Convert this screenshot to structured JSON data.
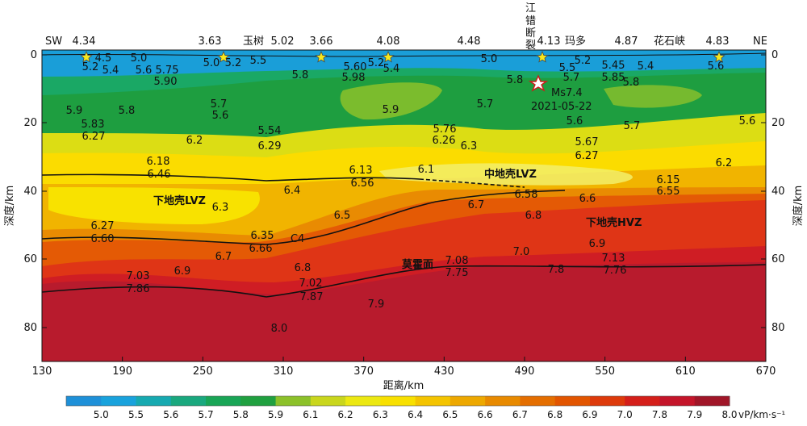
{
  "profile": {
    "sw_label": "SW",
    "ne_label": "NE",
    "left_depth_title": "深度/km",
    "right_depth_title": "深度/km",
    "x_axis_title": "距离/km",
    "x_ticks": [
      "130",
      "190",
      "250",
      "310",
      "370",
      "430",
      "490",
      "550",
      "610",
      "670"
    ],
    "y_ticks": [
      "0",
      "20",
      "40",
      "60",
      "80"
    ],
    "top_values": [
      "4.34",
      "3.63",
      "5.02",
      "3.66",
      "4.08",
      "4.48",
      "4.13",
      "4.87",
      "4.83"
    ],
    "places": [
      "玉树",
      "江错断裂",
      "玛多",
      "花石峡"
    ],
    "quake_magnitude": "Ms7.4",
    "quake_date": "2021-05-22",
    "zones": {
      "mid_crust_lvz": "中地壳LVZ",
      "lower_crust_lvz": "下地壳LVZ",
      "lower_crust_hvz": "下地壳HVZ",
      "moho": "莫霍面",
      "c4": "C4"
    },
    "velocity_labels": [
      {
        "t": "4.5",
        "x": 128,
        "y": 76
      },
      {
        "t": "5.0",
        "x": 172,
        "y": 76
      },
      {
        "t": "5.2",
        "x": 112,
        "y": 87
      },
      {
        "t": "5.4",
        "x": 137,
        "y": 91
      },
      {
        "t": "5.6",
        "x": 178,
        "y": 91
      },
      {
        "t": "5.75",
        "x": 207,
        "y": 91
      },
      {
        "t": "5.90",
        "x": 205,
        "y": 105
      },
      {
        "t": "5.0",
        "x": 262,
        "y": 82
      },
      {
        "t": "5.2",
        "x": 289,
        "y": 82
      },
      {
        "t": "5.5",
        "x": 320,
        "y": 79
      },
      {
        "t": "5.60",
        "x": 440,
        "y": 87
      },
      {
        "t": "5.2",
        "x": 466,
        "y": 82
      },
      {
        "t": "5.4",
        "x": 485,
        "y": 89
      },
      {
        "t": "5.98",
        "x": 438,
        "y": 100
      },
      {
        "t": "5.8",
        "x": 372,
        "y": 97
      },
      {
        "t": "5.0",
        "x": 606,
        "y": 77
      },
      {
        "t": "5.2",
        "x": 722,
        "y": 79
      },
      {
        "t": "5.5",
        "x": 703,
        "y": 88
      },
      {
        "t": "5.45",
        "x": 760,
        "y": 85
      },
      {
        "t": "5.4",
        "x": 800,
        "y": 86
      },
      {
        "t": "5.6",
        "x": 887,
        "y": 86
      },
      {
        "t": "5.7",
        "x": 708,
        "y": 100
      },
      {
        "t": "5.85",
        "x": 760,
        "y": 100
      },
      {
        "t": "5.8",
        "x": 782,
        "y": 106
      },
      {
        "t": "5.8",
        "x": 638,
        "y": 103
      },
      {
        "t": "5.9",
        "x": 92,
        "y": 141
      },
      {
        "t": "5.8",
        "x": 157,
        "y": 141
      },
      {
        "t": "5.83",
        "x": 115,
        "y": 158
      },
      {
        "t": "6.27",
        "x": 116,
        "y": 173
      },
      {
        "t": "5.7",
        "x": 271,
        "y": 133
      },
      {
        "t": "5.6",
        "x": 273,
        "y": 147
      },
      {
        "t": "5.9",
        "x": 484,
        "y": 140
      },
      {
        "t": "5.7",
        "x": 601,
        "y": 133
      },
      {
        "t": "5.6",
        "x": 712,
        "y": 154
      },
      {
        "t": "5.7",
        "x": 783,
        "y": 160
      },
      {
        "t": "5.6",
        "x": 926,
        "y": 154
      },
      {
        "t": "5.54",
        "x": 334,
        "y": 166
      },
      {
        "t": "5.76",
        "x": 551,
        "y": 164
      },
      {
        "t": "6.2",
        "x": 241,
        "y": 178
      },
      {
        "t": "6.29",
        "x": 334,
        "y": 185
      },
      {
        "t": "6.26",
        "x": 550,
        "y": 178
      },
      {
        "t": "6.3",
        "x": 581,
        "y": 185
      },
      {
        "t": "5.67",
        "x": 727,
        "y": 180
      },
      {
        "t": "6.27",
        "x": 727,
        "y": 197
      },
      {
        "t": "6.2",
        "x": 897,
        "y": 206
      },
      {
        "t": "6.18",
        "x": 196,
        "y": 204
      },
      {
        "t": "6.46",
        "x": 197,
        "y": 220
      },
      {
        "t": "6.13",
        "x": 447,
        "y": 215
      },
      {
        "t": "6.1",
        "x": 528,
        "y": 214
      },
      {
        "t": "6.56",
        "x": 449,
        "y": 231
      },
      {
        "t": "6.15",
        "x": 828,
        "y": 227
      },
      {
        "t": "6.55",
        "x": 828,
        "y": 241
      },
      {
        "t": "6.4",
        "x": 362,
        "y": 240
      },
      {
        "t": "6.58",
        "x": 652,
        "y": 245
      },
      {
        "t": "6.6",
        "x": 728,
        "y": 250
      },
      {
        "t": "6.3",
        "x": 273,
        "y": 261
      },
      {
        "t": "6.7",
        "x": 590,
        "y": 258
      },
      {
        "t": "6.5",
        "x": 424,
        "y": 271
      },
      {
        "t": "6.8",
        "x": 661,
        "y": 271
      },
      {
        "t": "6.27",
        "x": 127,
        "y": 284
      },
      {
        "t": "6.60",
        "x": 127,
        "y": 300
      },
      {
        "t": "6.35",
        "x": 325,
        "y": 296
      },
      {
        "t": "6.66",
        "x": 323,
        "y": 312
      },
      {
        "t": "6.9",
        "x": 740,
        "y": 306
      },
      {
        "t": "6.7",
        "x": 277,
        "y": 322
      },
      {
        "t": "7.0",
        "x": 646,
        "y": 316
      },
      {
        "t": "7.08",
        "x": 566,
        "y": 327
      },
      {
        "t": "7.13",
        "x": 760,
        "y": 324
      },
      {
        "t": "6.8",
        "x": 375,
        "y": 336
      },
      {
        "t": "6.9",
        "x": 226,
        "y": 340
      },
      {
        "t": "7.75",
        "x": 566,
        "y": 342
      },
      {
        "t": "7.8",
        "x": 689,
        "y": 338
      },
      {
        "t": "7.76",
        "x": 762,
        "y": 339
      },
      {
        "t": "7.03",
        "x": 171,
        "y": 346
      },
      {
        "t": "7.86",
        "x": 171,
        "y": 362
      },
      {
        "t": "7.02",
        "x": 385,
        "y": 355
      },
      {
        "t": "7.87",
        "x": 386,
        "y": 372
      },
      {
        "t": "7.9",
        "x": 466,
        "y": 381
      },
      {
        "t": "8.0",
        "x": 346,
        "y": 411
      }
    ],
    "colorbar_values": [
      "5.0",
      "5.5",
      "5.6",
      "5.7",
      "5.8",
      "5.9",
      "6.1",
      "6.2",
      "6.3",
      "6.4",
      "6.5",
      "6.6",
      "6.7",
      "6.8",
      "6.9",
      "7.0",
      "7.8",
      "7.9",
      "8.0"
    ],
    "colorbar_colors": [
      "#1e90d8",
      "#19a2dc",
      "#17a9b0",
      "#1aa87e",
      "#19a556",
      "#20a040",
      "#8cc12a",
      "#c9d61d",
      "#ece812",
      "#f8e000",
      "#f4c400",
      "#eda800",
      "#e88a00",
      "#e46e00",
      "#e25500",
      "#dd3a0b",
      "#d41f1a",
      "#c4152a",
      "#a01628"
    ],
    "colorbar_unit": "vP/km·s⁻¹"
  }
}
